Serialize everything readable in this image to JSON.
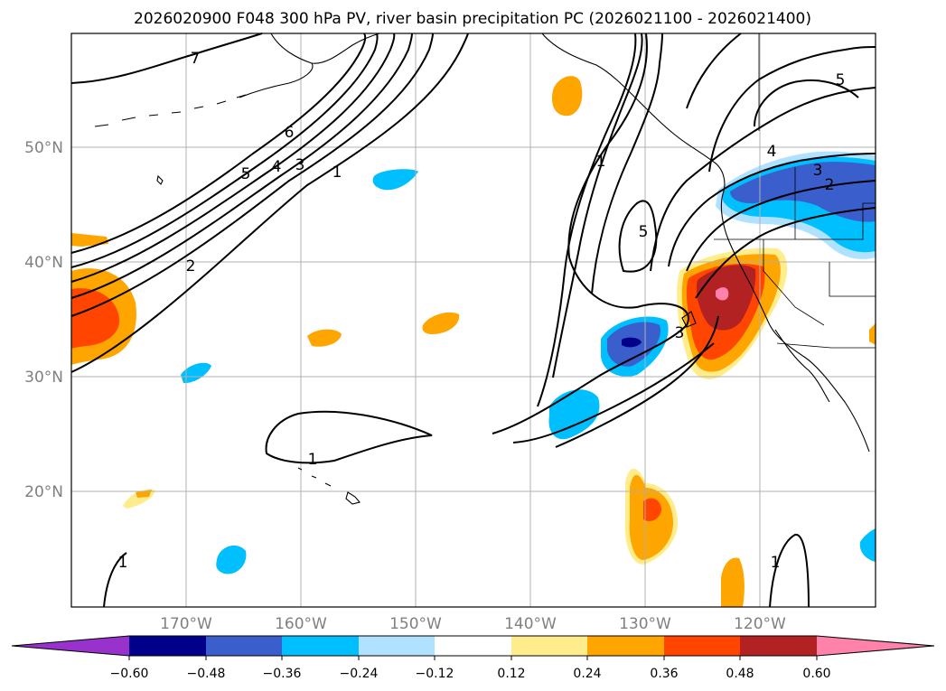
{
  "title": "2026020900 F048 300 hPa PV, river basin precipitation PC (2026021100 - 2026021400)",
  "lat_labels": [
    "50°N",
    "40°N",
    "30°N",
    "20°N"
  ],
  "lon_labels": [
    "170°W",
    "160°W",
    "150°W",
    "140°W",
    "130°W",
    "120°W"
  ],
  "contour_labels": [
    "7",
    "6",
    "5",
    "4",
    "3",
    "1",
    "2",
    "1",
    "5",
    "3",
    "4",
    "3",
    "2",
    "5",
    "1",
    "1",
    "1"
  ],
  "colorbar": {
    "ticks": [
      "−0.60",
      "−0.48",
      "−0.36",
      "−0.24",
      "−0.12",
      "0.12",
      "0.24",
      "0.36",
      "0.48",
      "0.60"
    ],
    "colors": [
      "#9932cc",
      "#00008b",
      "#3a5fcd",
      "#00bfff",
      "#b0e2ff",
      "#ffffff",
      "#ffec8b",
      "#ffa500",
      "#ff4500",
      "#b22222",
      "#ff82ab"
    ]
  }
}
